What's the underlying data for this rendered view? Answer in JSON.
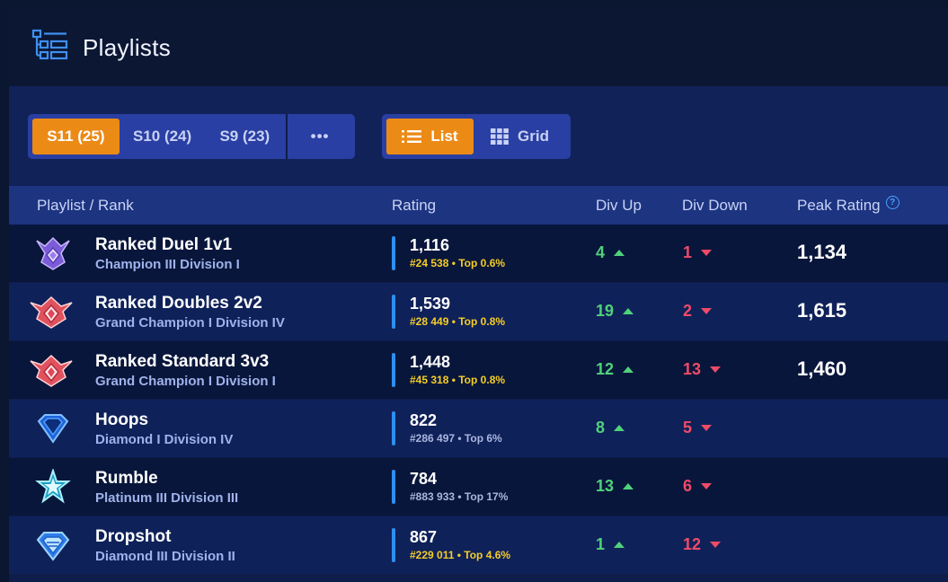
{
  "header": {
    "title": "Playlists",
    "icon": "playlist-icon"
  },
  "seasons": [
    {
      "label": "S11 (25)",
      "active": true
    },
    {
      "label": "S10 (24)",
      "active": false
    },
    {
      "label": "S9 (23)",
      "active": false
    }
  ],
  "more_label": "•••",
  "view": {
    "list_label": "List",
    "grid_label": "Grid",
    "active": "list"
  },
  "columns": {
    "name": "Playlist / Rank",
    "rating": "Rating",
    "div_up": "Div Up",
    "div_down": "Div Down",
    "peak": "Peak Rating"
  },
  "rows": [
    {
      "name": "Ranked Duel 1v1",
      "rank": "Champion III Division I",
      "rating": "1,116",
      "sub": "#24 538 • Top 0.6%",
      "sub_color": "gold",
      "up": "4",
      "down": "1",
      "peak": "1,134",
      "icon": "champion-rank-icon"
    },
    {
      "name": "Ranked Doubles 2v2",
      "rank": "Grand Champion I Division IV",
      "rating": "1,539",
      "sub": "#28 449 • Top 0.8%",
      "sub_color": "gold",
      "up": "19",
      "down": "2",
      "peak": "1,615",
      "icon": "grand-champion-rank-icon"
    },
    {
      "name": "Ranked Standard 3v3",
      "rank": "Grand Champion I Division I",
      "rating": "1,448",
      "sub": "#45 318 • Top 0.8%",
      "sub_color": "gold",
      "up": "12",
      "down": "13",
      "peak": "1,460",
      "icon": "grand-champion-rank-icon"
    },
    {
      "name": "Hoops",
      "rank": "Diamond I Division IV",
      "rating": "822",
      "sub": "#286 497 • Top 6%",
      "sub_color": "grey",
      "up": "8",
      "down": "5",
      "peak": "",
      "icon": "diamond-rank-icon"
    },
    {
      "name": "Rumble",
      "rank": "Platinum III Division III",
      "rating": "784",
      "sub": "#883 933 • Top 17%",
      "sub_color": "grey",
      "up": "13",
      "down": "6",
      "peak": "",
      "icon": "platinum-rank-icon"
    },
    {
      "name": "Dropshot",
      "rank": "Diamond III Division II",
      "rating": "867",
      "sub": "#229 011 • Top 4.6%",
      "sub_color": "gold",
      "up": "1",
      "down": "12",
      "peak": "",
      "icon": "diamond-rank-icon"
    }
  ],
  "colors": {
    "accent": "#ec8a16",
    "positive": "#4fd27a",
    "negative": "#ef4b68",
    "gold": "#f5cd25"
  }
}
